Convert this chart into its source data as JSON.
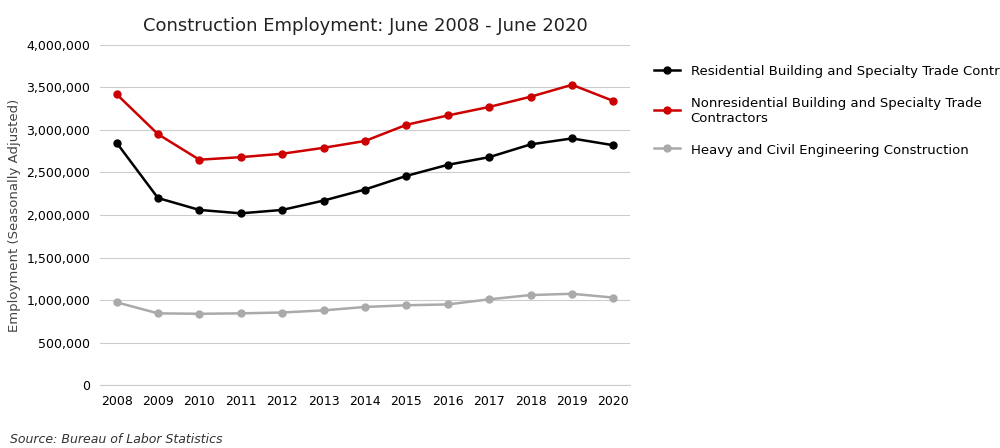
{
  "title": "Construction Employment: June 2008 - June 2020",
  "ylabel": "Employment (Seasonally Adjusted)",
  "source": "Source: Bureau of Labor Statistics",
  "years": [
    2008,
    2009,
    2010,
    2011,
    2012,
    2013,
    2014,
    2015,
    2016,
    2017,
    2018,
    2019,
    2020
  ],
  "residential": [
    2850000,
    2200000,
    2060000,
    2020000,
    2060000,
    2170000,
    2300000,
    2460000,
    2590000,
    2680000,
    2830000,
    2900000,
    2820000
  ],
  "nonresidential": [
    3420000,
    2950000,
    2650000,
    2680000,
    2720000,
    2790000,
    2870000,
    3060000,
    3170000,
    3270000,
    3390000,
    3530000,
    3340000
  ],
  "heavy": [
    975000,
    845000,
    840000,
    845000,
    855000,
    880000,
    920000,
    940000,
    950000,
    1010000,
    1060000,
    1075000,
    1030000
  ],
  "residential_color": "#000000",
  "nonresidential_color": "#cc0000",
  "heavy_color": "#aaaaaa",
  "ylim": [
    0,
    4000000
  ],
  "yticks": [
    0,
    500000,
    1000000,
    1500000,
    2000000,
    2500000,
    3000000,
    3500000,
    4000000
  ],
  "grid_color": "#cccccc",
  "title_fontsize": 13,
  "label_fontsize": 9.5,
  "tick_fontsize": 9,
  "source_fontsize": 9,
  "legend_residential": "Residential Building and Specialty Trade Contractors",
  "legend_nonresidential": "Nonresidential Building and Specialty Trade\nContractors",
  "legend_heavy": "Heavy and Civil Engineering Construction",
  "marker": "o",
  "markersize": 5,
  "linewidth": 1.8
}
